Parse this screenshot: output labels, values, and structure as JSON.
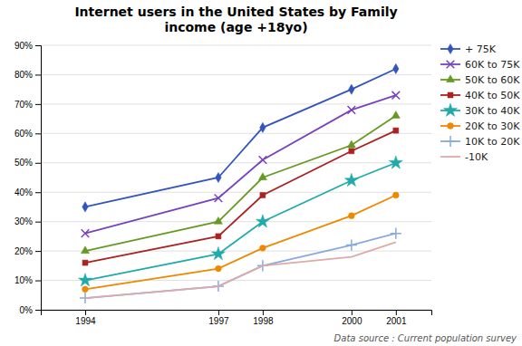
{
  "chart_data": {
    "type": "line",
    "title": "Internet users in the United States by Family\nincome (age +18yo)",
    "x": [
      1994,
      1997,
      1998,
      2000,
      2001
    ],
    "series": [
      {
        "name": "+ 75K",
        "color": "#3355bb",
        "marker": "diamond",
        "values": [
          0.35,
          0.45,
          0.62,
          0.75,
          0.82
        ]
      },
      {
        "name": "60K to 75K",
        "color": "#7744bb",
        "marker": "x",
        "values": [
          0.26,
          0.38,
          0.51,
          0.68,
          0.73
        ]
      },
      {
        "name": "50K to 60K",
        "color": "#669922",
        "marker": "triangle",
        "values": [
          0.2,
          0.3,
          0.45,
          0.56,
          0.66
        ]
      },
      {
        "name": "40K to 50K",
        "color": "#aa2222",
        "marker": "square",
        "values": [
          0.16,
          0.25,
          0.39,
          0.54,
          0.61
        ]
      },
      {
        "name": "30K to 40K",
        "color": "#22aaaa",
        "marker": "star",
        "values": [
          0.1,
          0.19,
          0.3,
          0.44,
          0.5
        ]
      },
      {
        "name": "20K to 30K",
        "color": "#ee8800",
        "marker": "circle",
        "values": [
          0.07,
          0.14,
          0.21,
          0.32,
          0.39
        ]
      },
      {
        "name": "10K to 20K",
        "color": "#88aadd",
        "marker": "plus",
        "values": [
          0.04,
          0.08,
          0.15,
          0.22,
          0.26
        ]
      },
      {
        "name": "-10K",
        "color": "#ddaaaa",
        "marker": "none",
        "values": [
          0.04,
          0.08,
          0.15,
          0.18,
          0.23
        ]
      }
    ],
    "xlim": [
      1993.0,
      2001.8
    ],
    "xticks": [
      1994,
      1997,
      1998,
      2000,
      2001
    ],
    "ylim": [
      0.0,
      0.9
    ],
    "yticks": [
      {
        "value": 0.0,
        "label": "0%"
      },
      {
        "value": 0.1,
        "label": "10%"
      },
      {
        "value": 0.2,
        "label": "20%"
      },
      {
        "value": 0.3,
        "label": "30%"
      },
      {
        "value": 0.4,
        "label": "40%"
      },
      {
        "value": 0.5,
        "label": "50%"
      },
      {
        "value": 0.6,
        "label": "60%"
      },
      {
        "value": 0.7,
        "label": "70%"
      },
      {
        "value": 0.8,
        "label": "80%"
      },
      {
        "value": 0.9,
        "label": "90%"
      }
    ],
    "grid": true,
    "legend": "right",
    "footnote": "Data source : Current population survey"
  }
}
